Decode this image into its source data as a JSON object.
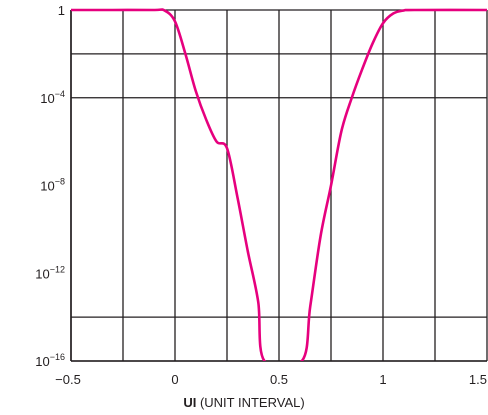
{
  "chart_data": {
    "type": "line",
    "title": "",
    "xlabel_bold": "UI",
    "xlabel_rest": "(UNIT INTERVAL)",
    "ylabel": "",
    "y_scale": "log",
    "xlim": [
      -0.5,
      1.5
    ],
    "ylim_exponent": [
      -16,
      0
    ],
    "x_ticks": [
      {
        "value": -0.5,
        "label": "−0.5"
      },
      {
        "value": 0,
        "label": "0"
      },
      {
        "value": 0.5,
        "label": "0.5"
      },
      {
        "value": 1,
        "label": "1"
      },
      {
        "value": 1.5,
        "label": "1.5"
      }
    ],
    "y_ticks": [
      {
        "exp": 0,
        "base": "1",
        "sup": ""
      },
      {
        "exp": -4,
        "base": "10",
        "sup": "−4"
      },
      {
        "exp": -8,
        "base": "10",
        "sup": "−8"
      },
      {
        "exp": -12,
        "base": "10",
        "sup": "−12"
      },
      {
        "exp": -16,
        "base": "10",
        "sup": "−16"
      }
    ],
    "grid": true,
    "grid_x": [
      -0.5,
      -0.25,
      0,
      0.25,
      0.5,
      0.75,
      1,
      1.25,
      1.5
    ],
    "grid_y_exp": [
      0,
      -2,
      -4,
      -14,
      -16
    ],
    "series": [
      {
        "color": "#e6007e",
        "points": [
          [
            -0.5,
            1
          ],
          [
            -0.3,
            1
          ],
          [
            -0.1,
            1
          ],
          [
            -0.05,
            0.95
          ],
          [
            0.0,
            0.3
          ],
          [
            0.05,
            0.01
          ],
          [
            0.1,
            0.0002
          ],
          [
            0.15,
            1e-05
          ],
          [
            0.2,
            1e-06
          ],
          [
            0.25,
            5e-07
          ],
          [
            0.3,
            3e-09
          ],
          [
            0.35,
            1e-11
          ],
          [
            0.4,
            5e-14
          ],
          [
            0.43,
            1e-16
          ],
          [
            0.61,
            1e-16
          ],
          [
            0.65,
            3e-14
          ],
          [
            0.7,
            5e-11
          ],
          [
            0.75,
            1e-08
          ],
          [
            0.8,
            3e-06
          ],
          [
            0.85,
            0.0001
          ],
          [
            0.9,
            0.002
          ],
          [
            0.95,
            0.03
          ],
          [
            1.0,
            0.25
          ],
          [
            1.05,
            0.7
          ],
          [
            1.1,
            0.95
          ],
          [
            1.15,
            1
          ],
          [
            1.5,
            1
          ]
        ]
      }
    ]
  }
}
